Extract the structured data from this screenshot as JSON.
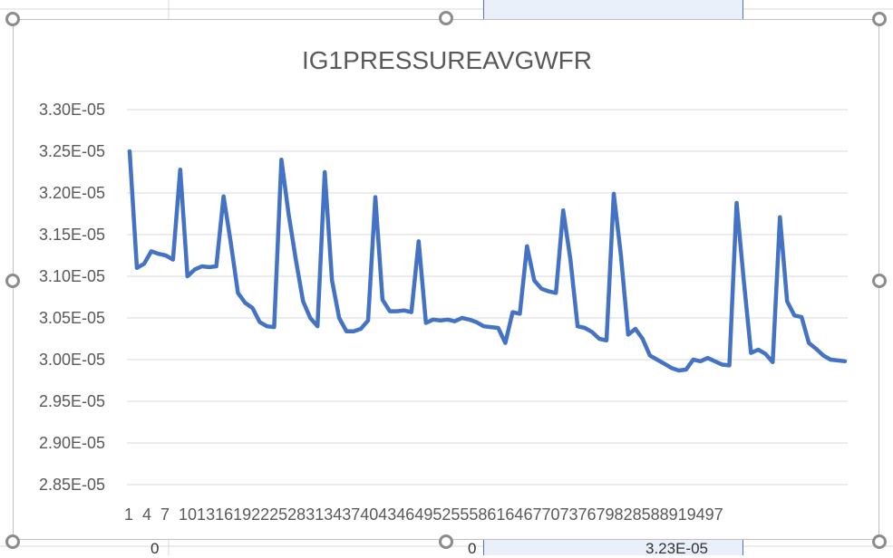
{
  "background_cells": {
    "cell_left_value": "0",
    "cell_mid_value": "0",
    "cell_right_value": "3.23E-05"
  },
  "chart_data": {
    "type": "line",
    "title": "IG1PRESSUREAVGWFR",
    "xlabel": "",
    "ylabel": "",
    "ylim": [
      2.85e-05,
      3.3e-05
    ],
    "y_ticks": [
      "3.30E-05",
      "3.25E-05",
      "3.20E-05",
      "3.15E-05",
      "3.10E-05",
      "3.05E-05",
      "3.00E-05",
      "2.95E-05",
      "2.90E-05",
      "2.85E-05"
    ],
    "x_tick_labels_text": "1  4  7  101316192225283134374043464952555861646770737679828588919497",
    "grid": "horizontal",
    "legend": "none",
    "line_color": "#4472c4",
    "series": [
      {
        "x": [
          1,
          2,
          3,
          4,
          5,
          6,
          7,
          8,
          9,
          10,
          11,
          12,
          13,
          14,
          15,
          16,
          17,
          18,
          19,
          20,
          21,
          22,
          23,
          24,
          25,
          26,
          27,
          28,
          29,
          30,
          31,
          32,
          33,
          34,
          35,
          36,
          37,
          38,
          39,
          40,
          41,
          42,
          43,
          44,
          45,
          46,
          47,
          48,
          49,
          50,
          51,
          52,
          53,
          54,
          55,
          56,
          57,
          58,
          59,
          60,
          61,
          62,
          63,
          64,
          65,
          66,
          67,
          68,
          69,
          70,
          71,
          72,
          73,
          74,
          75,
          76,
          77,
          78,
          79,
          80,
          81,
          82,
          83,
          84,
          85,
          86,
          87,
          88,
          89,
          90,
          91,
          92,
          93,
          94,
          95,
          96,
          97,
          98,
          99,
          100
        ],
        "values": [
          3.25e-05,
          3.11e-05,
          3.115e-05,
          3.13e-05,
          3.127e-05,
          3.125e-05,
          3.12e-05,
          3.228e-05,
          3.1e-05,
          3.108e-05,
          3.112e-05,
          3.111e-05,
          3.112e-05,
          3.196e-05,
          3.14e-05,
          3.08e-05,
          3.068e-05,
          3.062e-05,
          3.045e-05,
          3.04e-05,
          3.039e-05,
          3.24e-05,
          3.175e-05,
          3.12e-05,
          3.07e-05,
          3.05e-05,
          3.04e-05,
          3.225e-05,
          3.095e-05,
          3.05e-05,
          3.034e-05,
          3.034e-05,
          3.037e-05,
          3.047e-05,
          3.195e-05,
          3.072e-05,
          3.058e-05,
          3.058e-05,
          3.059e-05,
          3.057e-05,
          3.142e-05,
          3.044e-05,
          3.048e-05,
          3.047e-05,
          3.048e-05,
          3.046e-05,
          3.05e-05,
          3.048e-05,
          3.045e-05,
          3.04e-05,
          3.039e-05,
          3.038e-05,
          3.02e-05,
          3.057e-05,
          3.055e-05,
          3.136e-05,
          3.095e-05,
          3.085e-05,
          3.082e-05,
          3.08e-05,
          3.179e-05,
          3.12e-05,
          3.04e-05,
          3.038e-05,
          3.033e-05,
          3.025e-05,
          3.023e-05,
          3.199e-05,
          3.125e-05,
          3.03e-05,
          3.037e-05,
          3.025e-05,
          3.005e-05,
          3e-05,
          2.995e-05,
          2.99e-05,
          2.987e-05,
          2.988e-05,
          3e-05,
          2.998e-05,
          3.002e-05,
          2.998e-05,
          2.994e-05,
          2.993e-05,
          3.188e-05,
          3.095e-05,
          3.008e-05,
          3.012e-05,
          3.007e-05,
          2.997e-05,
          3.171e-05,
          3.07e-05,
          3.053e-05,
          3.051e-05,
          3.02e-05,
          3.013e-05,
          3.005e-05,
          3e-05,
          2.999e-05,
          2.998e-05
        ]
      }
    ]
  }
}
